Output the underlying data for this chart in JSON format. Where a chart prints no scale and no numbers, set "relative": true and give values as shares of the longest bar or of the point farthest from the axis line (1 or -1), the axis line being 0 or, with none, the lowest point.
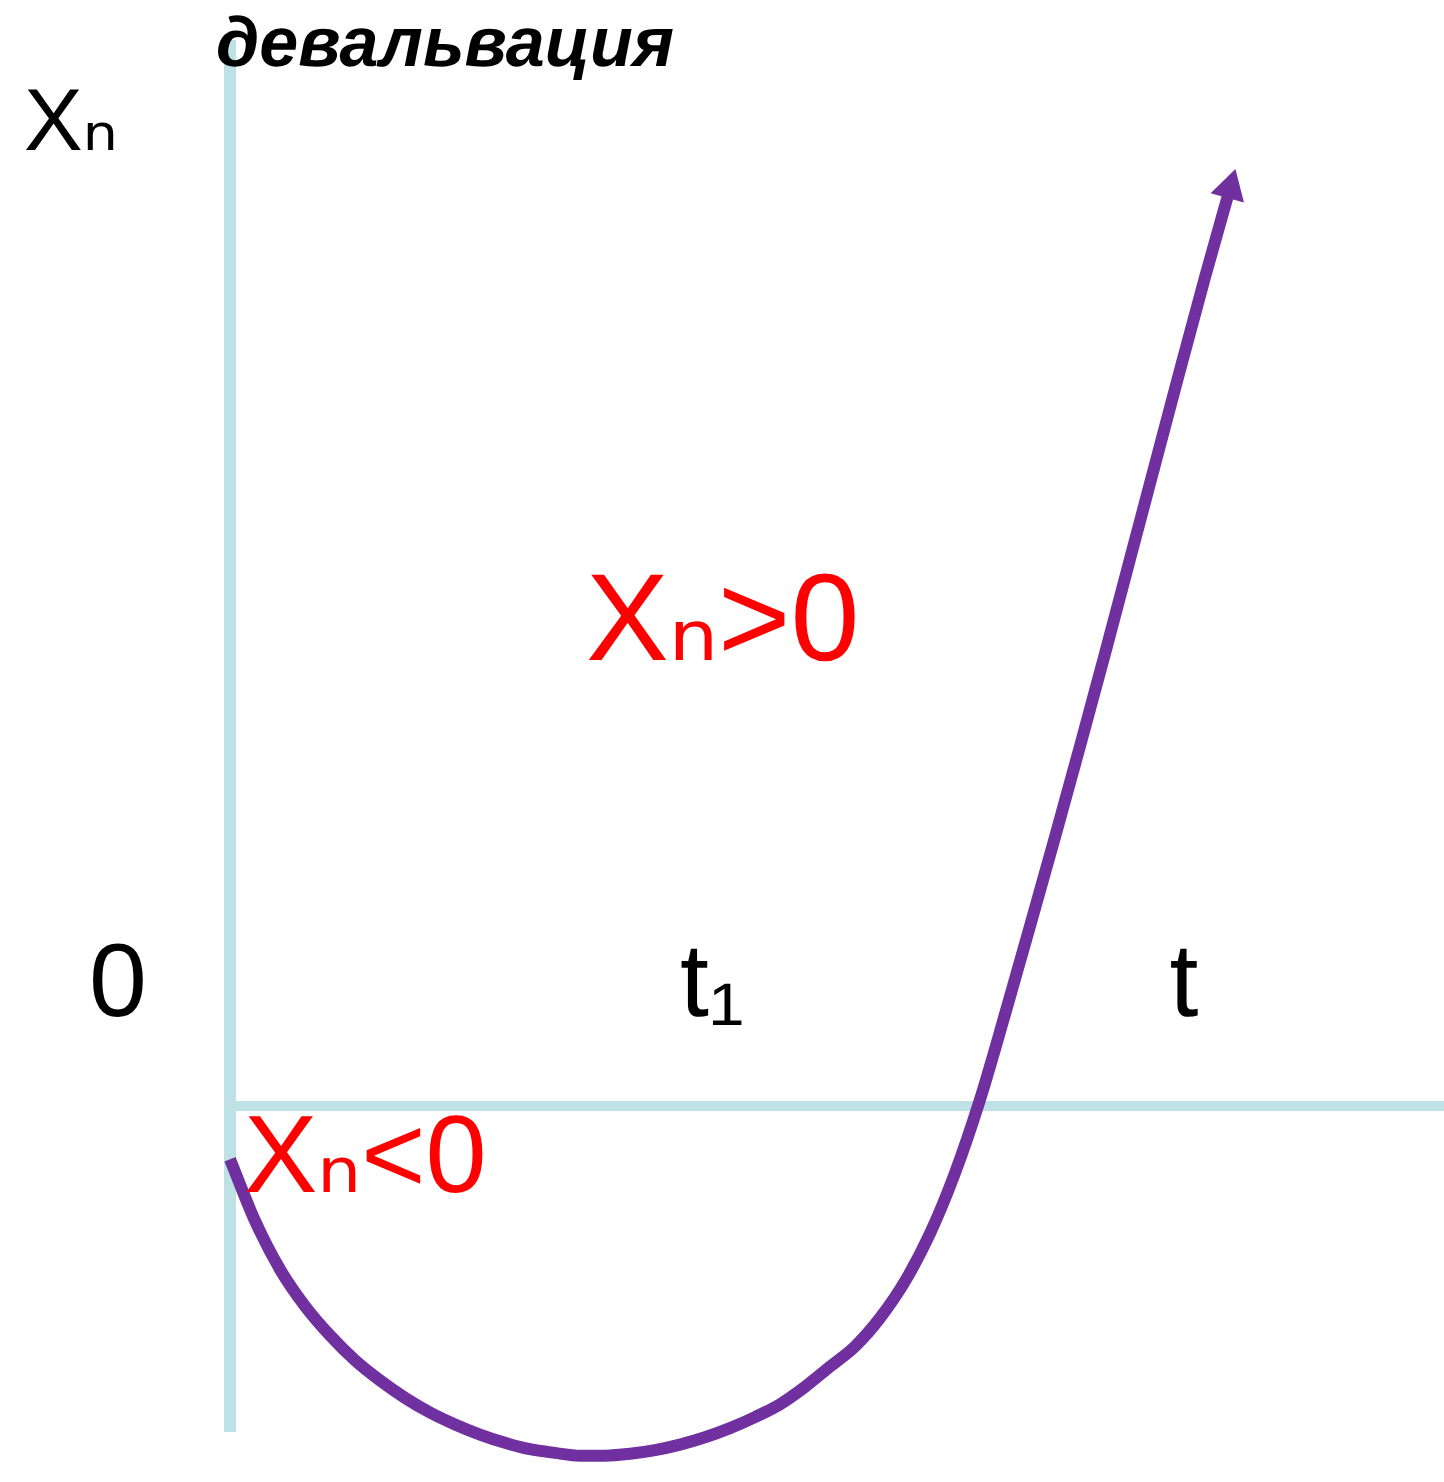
{
  "chart_data": {
    "type": "line",
    "title": "девальвация",
    "xlabel": "t",
    "ylabel": "Xₙ",
    "categories": [
      null,
      null,
      null,
      null,
      null,
      null,
      null,
      null,
      null,
      null,
      null,
      null,
      null,
      null,
      null,
      null,
      null,
      null,
      null,
      null,
      null,
      null,
      null,
      null,
      null,
      null,
      null,
      null,
      null,
      null,
      null,
      null,
      null,
      null,
      null,
      null,
      null,
      null,
      null,
      null,
      null
    ],
    "relative": true,
    "marker": "none",
    "line_style": "solid",
    "series": [
      {
        "color": "#7030a0",
        "values": [
          -0.058,
          -0.125,
          -0.178,
          -0.218,
          -0.25,
          -0.277,
          -0.299,
          -0.318,
          -0.334,
          -0.347,
          -0.358,
          -0.367,
          -0.374,
          -0.378,
          -0.381,
          -0.381,
          -0.379,
          -0.375,
          -0.369,
          -0.361,
          -0.351,
          -0.339,
          -0.325,
          -0.306,
          -0.284,
          -0.262,
          -0.231,
          -0.191,
          -0.139,
          -0.073,
          0.007,
          0.1,
          0.196,
          0.293,
          0.392,
          0.493,
          0.596,
          0.699,
          0.802,
          0.903,
          1
        ]
      }
    ],
    "annotations": [
      "Xₙ>0",
      "0",
      "t₁",
      "Xₙ<0"
    ]
  }
}
